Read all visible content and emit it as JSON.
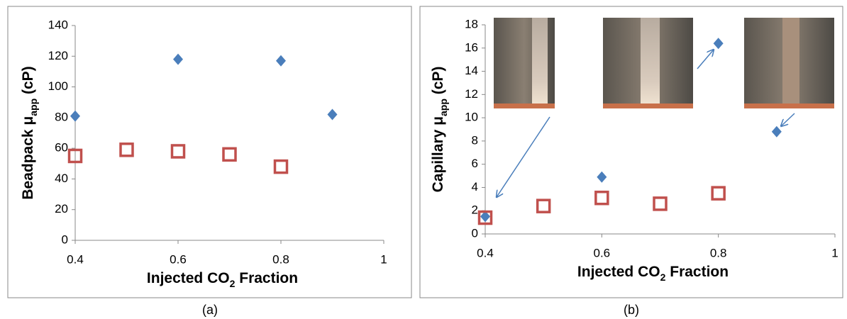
{
  "chart_data": [
    {
      "type": "scatter",
      "caption": "(a)",
      "xlabel": [
        "Injected CO",
        "2",
        " Fraction"
      ],
      "ylabel": [
        "Beadpack μ",
        "app",
        " (cP)"
      ],
      "xlim": [
        0.4,
        1
      ],
      "xticks": [
        0.4,
        0.6,
        0.8,
        1
      ],
      "ylim": [
        0,
        140
      ],
      "yticks": [
        0,
        20,
        40,
        60,
        80,
        100,
        120,
        140
      ],
      "series": [
        {
          "marker": "diamond",
          "color": "#4a7ebb",
          "x": [
            0.4,
            0.6,
            0.8,
            0.9
          ],
          "values": [
            81,
            118,
            117,
            82
          ]
        },
        {
          "marker": "square",
          "color": "#c0504d",
          "x": [
            0.4,
            0.5,
            0.6,
            0.7,
            0.8
          ],
          "values": [
            55,
            59,
            58,
            56,
            48
          ]
        }
      ]
    },
    {
      "type": "scatter",
      "caption": "(b)",
      "xlabel": [
        "Injected CO",
        "2",
        " Fraction"
      ],
      "ylabel": [
        "Capillary μ",
        "app",
        " (cP)"
      ],
      "xlim": [
        0.4,
        1
      ],
      "xticks": [
        0.4,
        0.6,
        0.8,
        1
      ],
      "ylim": [
        0,
        18
      ],
      "yticks": [
        0,
        2,
        4,
        6,
        8,
        10,
        12,
        14,
        16,
        18
      ],
      "series": [
        {
          "marker": "diamond",
          "color": "#4a7ebb",
          "x": [
            0.4,
            0.6,
            0.8,
            0.9
          ],
          "values": [
            1.5,
            4.9,
            16.4,
            8.8
          ]
        },
        {
          "marker": "square",
          "color": "#c0504d",
          "x": [
            0.4,
            0.5,
            0.6,
            0.7,
            0.8
          ],
          "values": [
            1.4,
            2.4,
            3.1,
            2.6,
            3.5
          ]
        }
      ]
    }
  ]
}
